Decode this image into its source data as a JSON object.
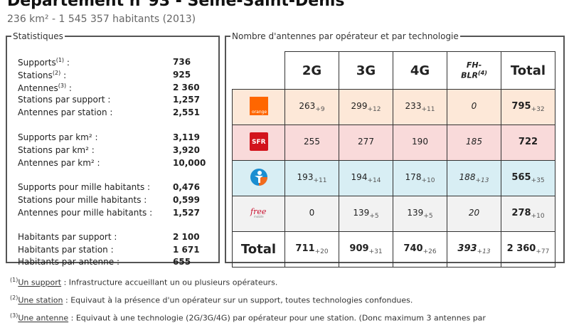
{
  "title": "Département n°93 - Seine-Saint-Denis",
  "subtitle": "236 km² - 1 545 357 habitants (2013)",
  "stats": {
    "legend": "Statistiques",
    "rows": [
      {
        "label": "Supports",
        "sup": "(1)",
        "suffix": " :",
        "value": "736"
      },
      {
        "label": "Stations",
        "sup": "(2)",
        "suffix": " :",
        "value": "925"
      },
      {
        "label": "Antennes",
        "sup": "(3)",
        "suffix": " :",
        "value": "2 360"
      },
      {
        "label": "Stations par support :",
        "value": "1,257"
      },
      {
        "label": "Antennes par station :",
        "value": "2,551"
      },
      {
        "label": "Supports par km² :",
        "value": "3,119"
      },
      {
        "label": "Stations par km² :",
        "value": "3,920"
      },
      {
        "label": "Antennes par km² :",
        "value": "10,000"
      },
      {
        "label": "Supports pour mille habitants :",
        "value": "0,476"
      },
      {
        "label": "Stations pour mille habitants :",
        "value": "0,599"
      },
      {
        "label": "Antennes pour mille habitants :",
        "value": "1,527"
      },
      {
        "label": "Habitants par support :",
        "value": "2 100"
      },
      {
        "label": "Habitants par station :",
        "value": "1 671"
      },
      {
        "label": "Habitants par antenne :",
        "value": "655"
      }
    ]
  },
  "antennas": {
    "legend": "Nombre d'antennes par opérateur et par technologie",
    "headers": [
      "2G",
      "3G",
      "4G",
      "FH-",
      "BLR",
      "(4)",
      "Total"
    ],
    "rows": [
      {
        "operator": "orange",
        "logo_text": "orange",
        "color": "#fde8d8",
        "cells": [
          [
            "263",
            "+9"
          ],
          [
            "299",
            "+12"
          ],
          [
            "233",
            "+11"
          ],
          [
            "0",
            ""
          ],
          [
            "795",
            "+32"
          ]
        ]
      },
      {
        "operator": "sfr",
        "logo_text": "SFR",
        "color": "#f9dada",
        "cells": [
          [
            "255",
            ""
          ],
          [
            "277",
            ""
          ],
          [
            "190",
            ""
          ],
          [
            "185",
            ""
          ],
          [
            "722",
            ""
          ]
        ]
      },
      {
        "operator": "bouygues",
        "logo_text": "",
        "color": "#d8eef4",
        "cells": [
          [
            "193",
            "+11"
          ],
          [
            "194",
            "+14"
          ],
          [
            "178",
            "+10"
          ],
          [
            "188",
            "+13"
          ],
          [
            "565",
            "+35"
          ]
        ]
      },
      {
        "operator": "free",
        "logo_text": "free",
        "color": "#f2f2f2",
        "cells": [
          [
            "0",
            ""
          ],
          [
            "139",
            "+5"
          ],
          [
            "139",
            "+5"
          ],
          [
            "20",
            ""
          ],
          [
            "278",
            "+10"
          ]
        ]
      }
    ],
    "total": {
      "label": "Total",
      "cells": [
        [
          "711",
          "+20"
        ],
        [
          "909",
          "+31"
        ],
        [
          "740",
          "+26"
        ],
        [
          "393",
          "+13"
        ],
        [
          "2 360",
          "+77"
        ]
      ]
    }
  },
  "notes": [
    {
      "num": "(1)",
      "term": "Un support",
      "text": " : Infrastructure accueillant un ou plusieurs opérateurs."
    },
    {
      "num": "(2)",
      "term": "Une station",
      "text": " : Equivaut à la présence d'un opérateur sur un support, toutes technologies confondues."
    },
    {
      "num": "(3)",
      "term": "Une antenne",
      "text": " : Equivaut à une technologie (2G/3G/4G) par opérateur pour une station. (Donc maximum 3 antennes par"
    }
  ]
}
